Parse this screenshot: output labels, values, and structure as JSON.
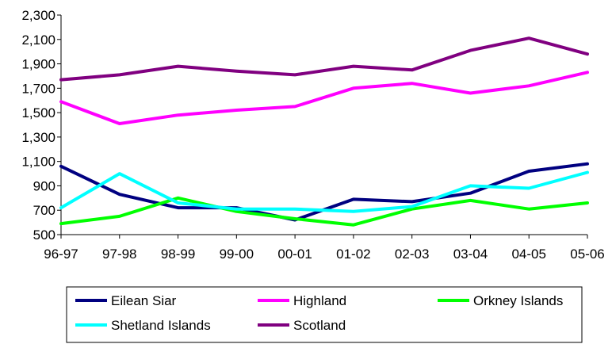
{
  "chart_data": {
    "type": "line",
    "categories": [
      "96-97",
      "97-98",
      "98-99",
      "99-00",
      "00-01",
      "01-02",
      "02-03",
      "03-04",
      "04-05",
      "05-06"
    ],
    "ylim": [
      500,
      2300
    ],
    "yticks": [
      "500",
      "700",
      "900",
      "1,100",
      "1,300",
      "1,500",
      "1,700",
      "1,900",
      "2,100",
      "2,300"
    ],
    "grid": false,
    "legend_position": "bottom",
    "series": [
      {
        "name": "Eilean Siar",
        "color": "#000080",
        "values": [
          1060,
          830,
          720,
          720,
          620,
          790,
          770,
          840,
          1020,
          1080
        ]
      },
      {
        "name": "Highland",
        "color": "#FF00FF",
        "values": [
          1590,
          1410,
          1480,
          1520,
          1550,
          1700,
          1740,
          1660,
          1720,
          1830
        ]
      },
      {
        "name": "Orkney Islands",
        "color": "#00FF00",
        "values": [
          590,
          650,
          800,
          690,
          630,
          580,
          710,
          780,
          710,
          760
        ]
      },
      {
        "name": "Shetland Islands",
        "color": "#00FFFF",
        "values": [
          720,
          1000,
          760,
          710,
          710,
          690,
          730,
          900,
          880,
          1010
        ]
      },
      {
        "name": "Scotland",
        "color": "#800080",
        "values": [
          1770,
          1810,
          1880,
          1840,
          1810,
          1880,
          1850,
          2010,
          2110,
          1980
        ]
      }
    ]
  }
}
